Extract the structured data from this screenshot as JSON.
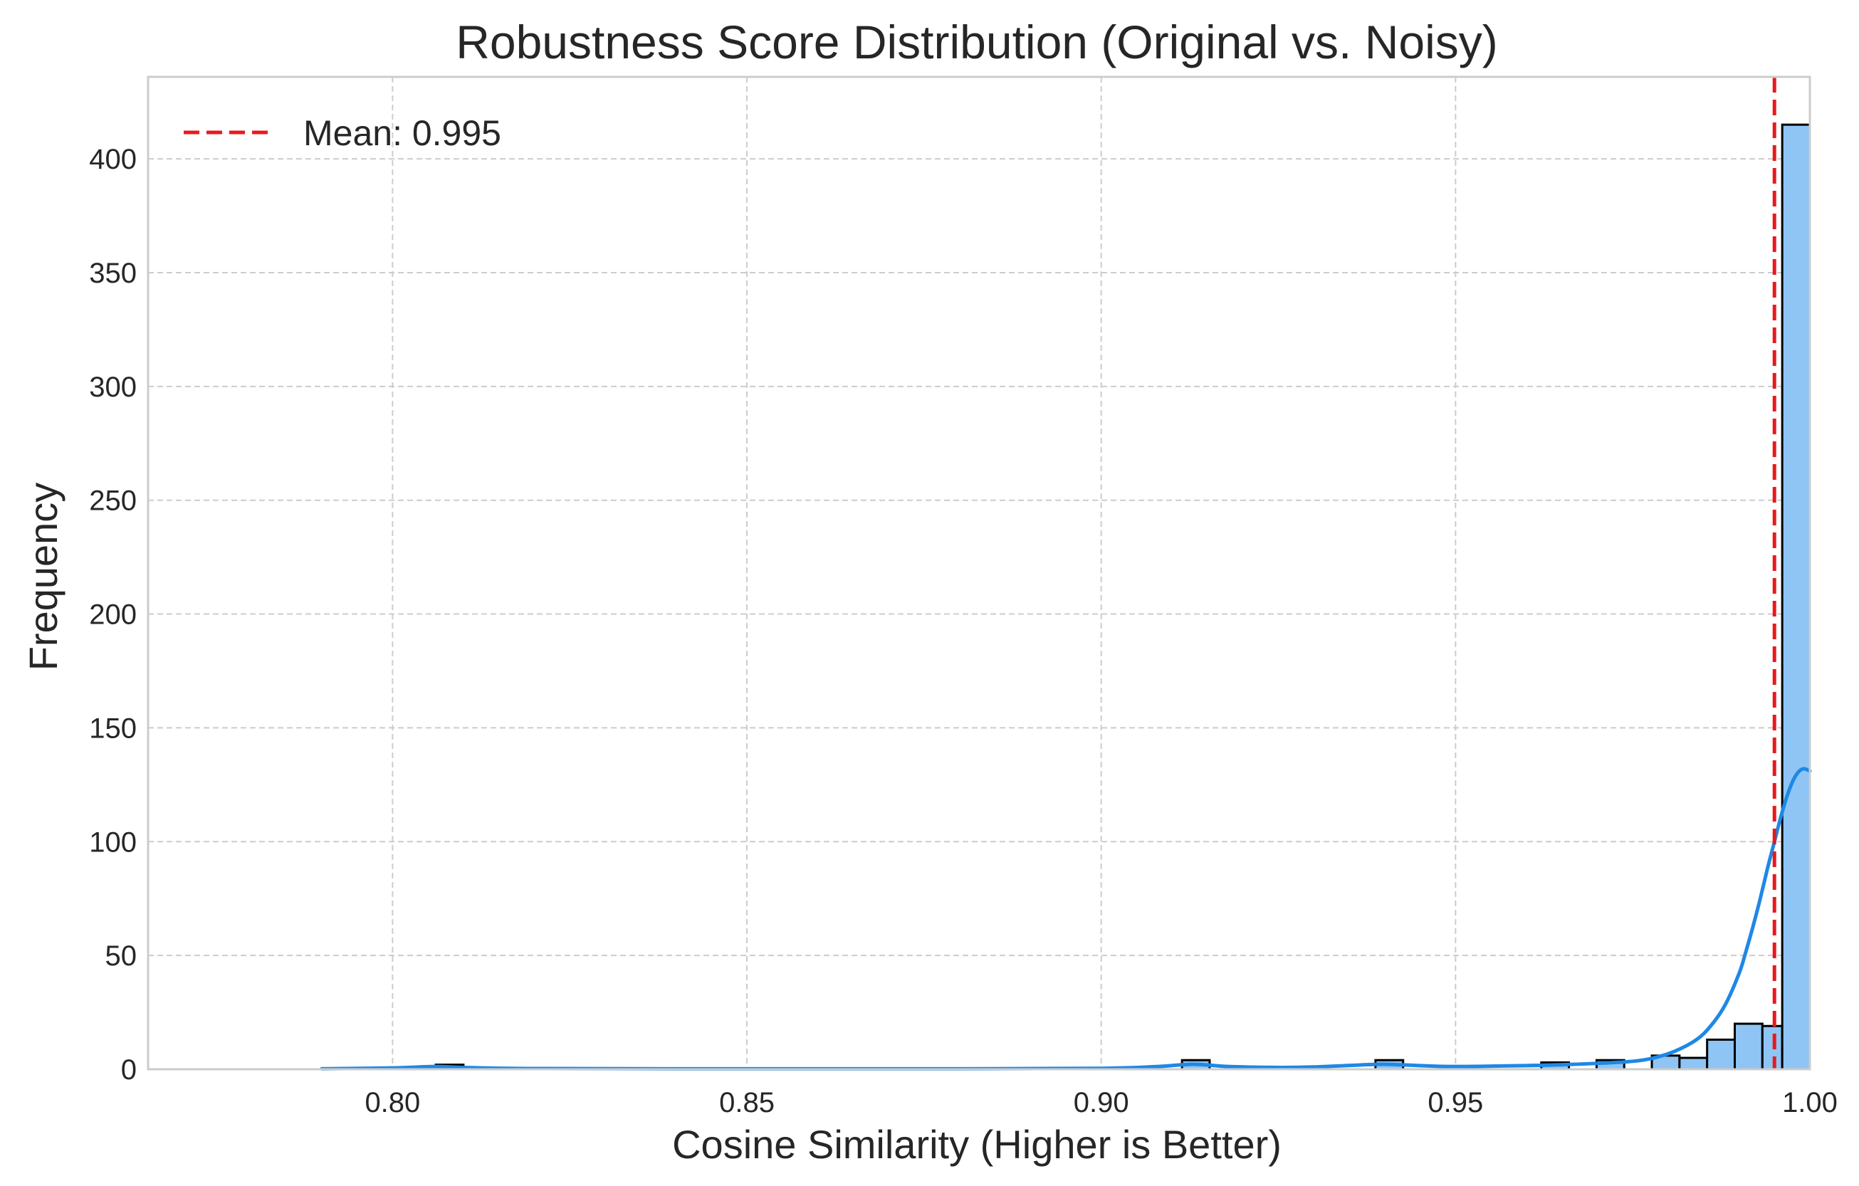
{
  "chart_data": {
    "type": "histogram",
    "title": "Robustness Score Distribution (Original vs. Noisy)",
    "xlabel": "Cosine Similarity (Higher is Better)",
    "ylabel": "Frequency",
    "xlim": [
      0.7655,
      1.0
    ],
    "ylim": [
      0,
      436
    ],
    "x_ticks": [
      0.8,
      0.85,
      0.9,
      0.95,
      1.0
    ],
    "x_tick_labels": [
      "0.80",
      "0.85",
      "0.90",
      "0.95",
      "1.00"
    ],
    "y_ticks": [
      0,
      50,
      100,
      150,
      200,
      250,
      300,
      350,
      400
    ],
    "y_tick_labels": [
      "0",
      "50",
      "100",
      "150",
      "200",
      "250",
      "300",
      "350",
      "400"
    ],
    "grid": true,
    "legend_position": "top-left",
    "bar_color": "#8ec5f5",
    "bar_edge_color": "#000000",
    "kde_color": "#1e88e5",
    "mean_line_color": "#e8191c",
    "bins": [
      {
        "x0": 0.8061,
        "x1": 0.81,
        "count": 2
      },
      {
        "x0": 0.9114,
        "x1": 0.9153,
        "count": 4
      },
      {
        "x0": 0.927,
        "x1": 0.9309,
        "count": 1
      },
      {
        "x0": 0.9387,
        "x1": 0.9426,
        "count": 4
      },
      {
        "x0": 0.9621,
        "x1": 0.966,
        "count": 3
      },
      {
        "x0": 0.9699,
        "x1": 0.9738,
        "count": 4
      },
      {
        "x0": 0.9777,
        "x1": 0.9816,
        "count": 6
      },
      {
        "x0": 0.9816,
        "x1": 0.9855,
        "count": 5
      },
      {
        "x0": 0.9855,
        "x1": 0.9894,
        "count": 13
      },
      {
        "x0": 0.9894,
        "x1": 0.9933,
        "count": 20
      },
      {
        "x0": 0.9933,
        "x1": 0.9961,
        "count": 19
      },
      {
        "x0": 0.9961,
        "x1": 1.0,
        "count": 415
      }
    ],
    "kde": {
      "x": [
        0.79,
        0.8,
        0.806,
        0.81,
        0.82,
        0.85,
        0.88,
        0.9,
        0.908,
        0.913,
        0.918,
        0.925,
        0.93,
        0.936,
        0.94,
        0.945,
        0.95,
        0.96,
        0.965,
        0.97,
        0.975,
        0.978,
        0.981,
        0.984,
        0.986,
        0.988,
        0.99,
        0.991,
        0.992,
        0.993,
        0.994,
        0.995,
        0.996,
        0.997,
        0.998,
        0.999,
        1.0
      ],
      "y": [
        0.2,
        0.6,
        1.2,
        0.8,
        0.3,
        0.2,
        0.2,
        0.4,
        1.2,
        2.2,
        1.2,
        0.8,
        1.0,
        1.8,
        2.2,
        1.6,
        1.2,
        1.6,
        2.0,
        2.6,
        3.5,
        5.0,
        8.0,
        13.0,
        19.0,
        28.0,
        42.0,
        52.0,
        63.0,
        75.0,
        88.0,
        100.0,
        112.0,
        122.0,
        129.0,
        132.0,
        131.0
      ]
    },
    "mean": 0.995,
    "legend": [
      {
        "label": "Mean: 0.995",
        "style": "dashed-line",
        "color": "#e8191c"
      }
    ]
  }
}
